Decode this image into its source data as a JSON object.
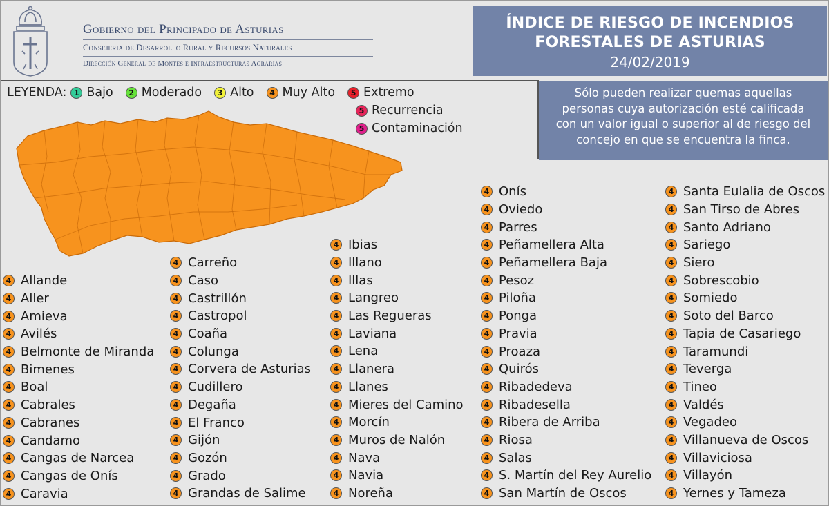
{
  "header": {
    "gov_line1": "Gobierno del Principado de Asturias",
    "gov_line2": "Consejeria de Desarrollo Rural y Recursos Naturales",
    "gov_line3": "Dirección General de Montes e Infraestructuras Agrarias",
    "title_line1": "ÍNDICE DE RIESGO DE INCENDIOS",
    "title_line2": "FORESTALES DE ASTURIAS",
    "date": "24/02/2019"
  },
  "note": {
    "line1": "Sólo pueden realizar quemas aquellas",
    "line2": "personas cuya autorización esté calificada",
    "line3": "con un valor igual o superior al de riesgo del",
    "line4": "concejo en que se encuentra la finca."
  },
  "legend": {
    "title": "LEYENDA:",
    "levels": [
      {
        "num": "1",
        "label": "Bajo",
        "color": "#33cc99"
      },
      {
        "num": "2",
        "label": "Moderado",
        "color": "#66e23a"
      },
      {
        "num": "3",
        "label": "Alto",
        "color": "#f2f23a"
      },
      {
        "num": "4",
        "label": "Muy Alto",
        "color": "#f7931e"
      },
      {
        "num": "5",
        "label": "Extremo",
        "color": "#e8202a"
      },
      {
        "num": "5",
        "label": "Recurrencia",
        "color": "#e8245a"
      },
      {
        "num": "5",
        "label": "Contaminación",
        "color": "#e0208c"
      }
    ]
  },
  "map": {
    "fill_color": "#f7931e",
    "risk_level": "4"
  },
  "columns": [
    {
      "risk": "4",
      "items": [
        "Allande",
        "Aller",
        "Amieva",
        "Avilés",
        "Belmonte de Miranda",
        "Bimenes",
        "Boal",
        "Cabrales",
        "Cabranes",
        "Candamo",
        "Cangas de Narcea",
        "Cangas de Onís",
        "Caravia"
      ]
    },
    {
      "risk": "4",
      "items": [
        "Carreño",
        "Caso",
        "Castrillón",
        "Castropol",
        "Coaña",
        "Colunga",
        "Corvera de Asturias",
        "Cudillero",
        "Degaña",
        "El Franco",
        "Gijón",
        "Gozón",
        "Grado",
        "Grandas de Salime"
      ]
    },
    {
      "risk": "4",
      "items": [
        "Ibias",
        "Illano",
        "Illas",
        "Langreo",
        "Las Regueras",
        "Laviana",
        "Lena",
        "Llanera",
        "Llanes",
        "Mieres del Camino",
        "Morcín",
        "Muros de Nalón",
        "Nava",
        "Navia",
        "Noreña"
      ]
    },
    {
      "risk": "4",
      "items": [
        "Onís",
        "Oviedo",
        "Parres",
        "Peñamellera Alta",
        "Peñamellera Baja",
        "Pesoz",
        "Piloña",
        "Ponga",
        "Pravia",
        "Proaza",
        "Quirós",
        "Ribadedeva",
        "Ribadesella",
        "Ribera de Arriba",
        "Riosa",
        "Salas",
        "S. Martín del Rey Aurelio",
        "San Martín de Oscos"
      ]
    },
    {
      "risk": "4",
      "items": [
        "Santa Eulalia de Oscos",
        "San Tirso de Abres",
        "Santo Adriano",
        "Sariego",
        "Siero",
        "Sobrescobio",
        "Somiedo",
        "Soto del Barco",
        "Tapia de Casariego",
        "Taramundi",
        "Teverga",
        "Tineo",
        "Valdés",
        "Vegadeo",
        "Villanueva de Oscos",
        "Villaviciosa",
        "Villayón",
        "Yernes y Tameza"
      ]
    }
  ]
}
